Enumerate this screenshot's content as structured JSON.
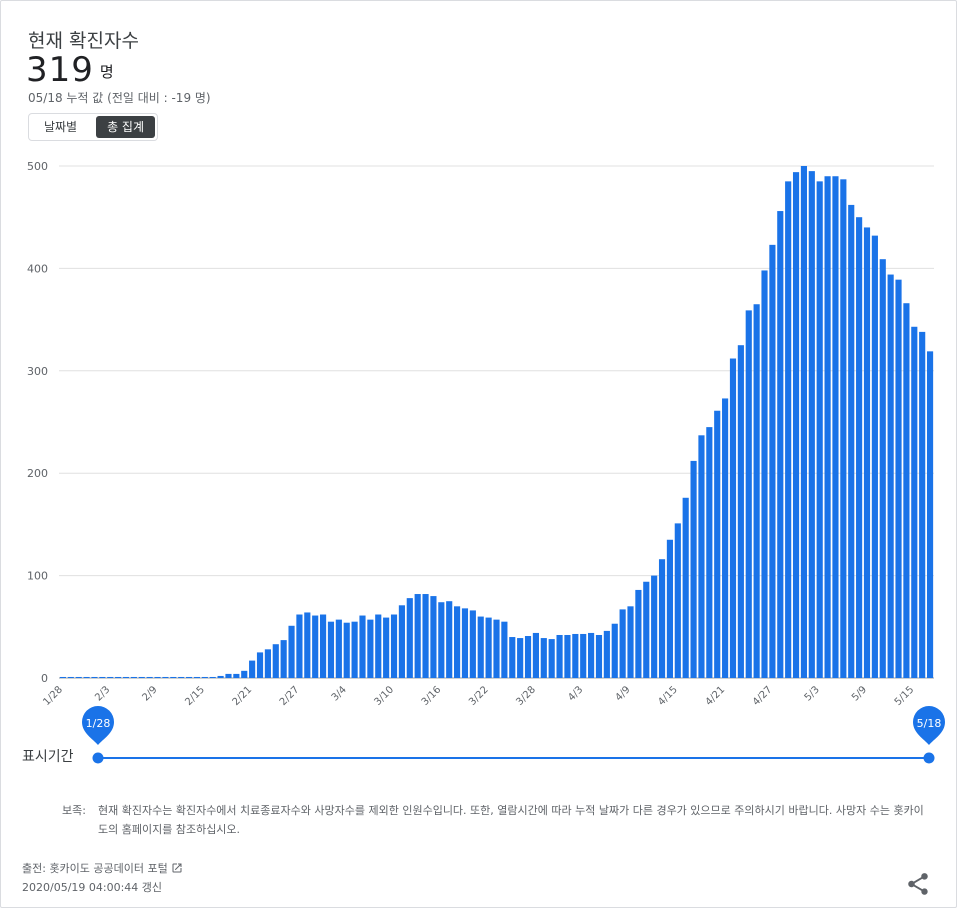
{
  "header": {
    "title": "현재 확진자수",
    "value": "319",
    "unit": "명",
    "subtitle": "05/18 누적 값 (전일 대비 : -19 명)"
  },
  "toggle": {
    "options": [
      "날짜별",
      "총 집계"
    ],
    "active": "총 집계"
  },
  "chart_data": {
    "type": "bar",
    "color": "#1a73e8",
    "ylim": [
      0,
      500
    ],
    "yticks": [
      0,
      100,
      200,
      300,
      400,
      500
    ],
    "grid": true,
    "xtick_labels": [
      "1/28",
      "2/3",
      "2/9",
      "2/15",
      "2/21",
      "2/27",
      "3/4",
      "3/10",
      "3/16",
      "3/22",
      "3/28",
      "4/3",
      "4/9",
      "4/15",
      "4/21",
      "4/27",
      "5/3",
      "5/9",
      "5/15"
    ],
    "start_date": "1/28",
    "end_date": "5/18",
    "values": [
      1,
      1,
      1,
      1,
      1,
      1,
      1,
      1,
      1,
      1,
      1,
      1,
      1,
      1,
      1,
      1,
      1,
      1,
      1,
      1,
      2,
      4,
      4,
      7,
      17,
      25,
      28,
      33,
      37,
      51,
      62,
      64,
      61,
      62,
      55,
      57,
      54,
      55,
      61,
      57,
      62,
      59,
      62,
      71,
      78,
      82,
      82,
      80,
      74,
      75,
      70,
      68,
      66,
      60,
      59,
      57,
      55,
      40,
      39,
      41,
      44,
      39,
      38,
      42,
      42,
      43,
      43,
      44,
      42,
      46,
      53,
      67,
      70,
      86,
      94,
      100,
      116,
      135,
      151,
      176,
      212,
      237,
      245,
      261,
      273,
      312,
      325,
      359,
      365,
      398,
      423,
      456,
      485,
      494,
      500,
      495,
      485,
      490,
      490,
      487,
      462,
      450,
      440,
      432,
      409,
      394,
      389,
      366,
      343,
      338,
      319
    ]
  },
  "range": {
    "label": "표시기간",
    "start": "1/28",
    "end": "5/18"
  },
  "note": {
    "label": "보족:",
    "text": "현재 확진자수는 확진자수에서 치료종료자수와 사망자수를 제외한 인원수입니다. 또한, 열람시간에 따라 누적 날짜가 다른 경우가 있으므로 주의하시기 바랍니다. 사망자 수는 홋카이도의 홈페이지를 참조하십시오."
  },
  "footer": {
    "source": "출전: 홋카이도 공공데이터 포털",
    "updated": "2020/05/19 04:00:44 갱신"
  },
  "icons": {
    "external_link": "external-link-icon",
    "share": "share-icon"
  }
}
